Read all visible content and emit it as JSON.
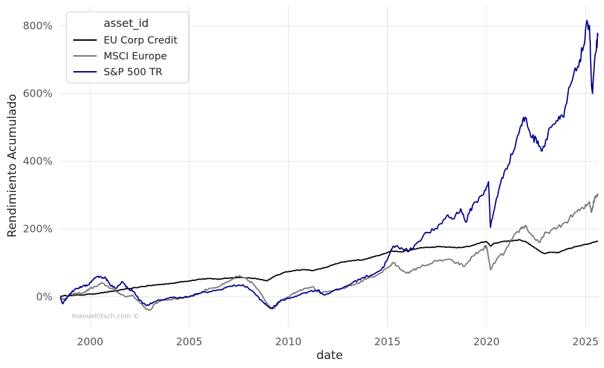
{
  "chart_data": {
    "type": "line",
    "xlabel": "date",
    "ylabel": "Rendimiento Acumulado",
    "xlim": [
      1998.45,
      2025.65
    ],
    "ylim": [
      -90,
      860
    ],
    "x_ticks": [
      {
        "value": 2000,
        "label": "2000"
      },
      {
        "value": 2005,
        "label": "2005"
      },
      {
        "value": 2010,
        "label": "2010"
      },
      {
        "value": 2015,
        "label": "2015"
      },
      {
        "value": 2020,
        "label": "2020"
      },
      {
        "value": 2025,
        "label": "2025"
      }
    ],
    "y_ticks": [
      {
        "value": 0,
        "label": "0%"
      },
      {
        "value": 200,
        "label": "200%"
      },
      {
        "value": 400,
        "label": "400%"
      },
      {
        "value": 600,
        "label": "600%"
      },
      {
        "value": 800,
        "label": "800%"
      }
    ],
    "grid": true,
    "legend": {
      "title": "asset_id",
      "position": "top-left"
    },
    "watermark": "manuelritsch.com ©",
    "series": [
      {
        "name": "EU Corp Credit",
        "color": "#000000",
        "points": [
          [
            1998.5,
            2
          ],
          [
            1999.0,
            4
          ],
          [
            1999.5,
            5
          ],
          [
            2000.0,
            8
          ],
          [
            2000.5,
            11
          ],
          [
            2001.0,
            15
          ],
          [
            2001.5,
            20
          ],
          [
            2002.0,
            24
          ],
          [
            2002.5,
            29
          ],
          [
            2003.0,
            33
          ],
          [
            2003.5,
            36
          ],
          [
            2004.0,
            39
          ],
          [
            2004.5,
            43
          ],
          [
            2005.0,
            47
          ],
          [
            2005.5,
            52
          ],
          [
            2006.0,
            54
          ],
          [
            2006.5,
            52
          ],
          [
            2007.0,
            55
          ],
          [
            2007.5,
            57
          ],
          [
            2008.0,
            56
          ],
          [
            2008.5,
            53
          ],
          [
            2008.9,
            47
          ],
          [
            2009.3,
            60
          ],
          [
            2009.8,
            72
          ],
          [
            2010.3,
            78
          ],
          [
            2010.8,
            80
          ],
          [
            2011.3,
            78
          ],
          [
            2011.8,
            85
          ],
          [
            2012.3,
            95
          ],
          [
            2012.8,
            103
          ],
          [
            2013.3,
            107
          ],
          [
            2013.8,
            110
          ],
          [
            2014.3,
            118
          ],
          [
            2014.8,
            127
          ],
          [
            2015.2,
            135
          ],
          [
            2015.7,
            133
          ],
          [
            2016.2,
            138
          ],
          [
            2016.7,
            145
          ],
          [
            2017.2,
            146
          ],
          [
            2017.7,
            148
          ],
          [
            2018.2,
            146
          ],
          [
            2018.7,
            145
          ],
          [
            2019.2,
            150
          ],
          [
            2019.7,
            160
          ],
          [
            2020.0,
            163
          ],
          [
            2020.2,
            150
          ],
          [
            2020.4,
            158
          ],
          [
            2020.8,
            163
          ],
          [
            2021.2,
            165
          ],
          [
            2021.7,
            168
          ],
          [
            2022.0,
            162
          ],
          [
            2022.3,
            150
          ],
          [
            2022.6,
            138
          ],
          [
            2022.9,
            128
          ],
          [
            2023.2,
            132
          ],
          [
            2023.6,
            130
          ],
          [
            2024.0,
            140
          ],
          [
            2024.5,
            148
          ],
          [
            2025.0,
            155
          ],
          [
            2025.5,
            162
          ],
          [
            2025.62,
            165
          ]
        ]
      },
      {
        "name": "MSCI Europe",
        "color": "#767676",
        "points": [
          [
            1998.5,
            0
          ],
          [
            1998.7,
            -10
          ],
          [
            1998.9,
            5
          ],
          [
            1999.3,
            10
          ],
          [
            1999.7,
            12
          ],
          [
            2000.0,
            25
          ],
          [
            2000.3,
            30
          ],
          [
            2000.6,
            40
          ],
          [
            2000.9,
            30
          ],
          [
            2001.2,
            20
          ],
          [
            2001.5,
            10
          ],
          [
            2001.8,
            0
          ],
          [
            2002.1,
            5
          ],
          [
            2002.4,
            -10
          ],
          [
            2002.7,
            -30
          ],
          [
            2003.0,
            -40
          ],
          [
            2003.3,
            -20
          ],
          [
            2003.6,
            -10
          ],
          [
            2004.0,
            -8
          ],
          [
            2004.5,
            -5
          ],
          [
            2005.0,
            0
          ],
          [
            2005.5,
            10
          ],
          [
            2006.0,
            25
          ],
          [
            2006.5,
            30
          ],
          [
            2007.0,
            45
          ],
          [
            2007.4,
            60
          ],
          [
            2007.8,
            55
          ],
          [
            2008.2,
            40
          ],
          [
            2008.6,
            10
          ],
          [
            2009.0,
            -25
          ],
          [
            2009.3,
            -35
          ],
          [
            2009.6,
            -10
          ],
          [
            2010.0,
            0
          ],
          [
            2010.4,
            15
          ],
          [
            2010.8,
            25
          ],
          [
            2011.2,
            30
          ],
          [
            2011.6,
            10
          ],
          [
            2012.0,
            15
          ],
          [
            2012.5,
            20
          ],
          [
            2013.0,
            30
          ],
          [
            2013.5,
            40
          ],
          [
            2014.0,
            55
          ],
          [
            2014.5,
            65
          ],
          [
            2015.0,
            85
          ],
          [
            2015.3,
            100
          ],
          [
            2015.7,
            80
          ],
          [
            2016.1,
            70
          ],
          [
            2016.5,
            85
          ],
          [
            2017.0,
            95
          ],
          [
            2017.5,
            105
          ],
          [
            2018.0,
            110
          ],
          [
            2018.5,
            100
          ],
          [
            2018.9,
            90
          ],
          [
            2019.3,
            120
          ],
          [
            2019.8,
            140
          ],
          [
            2020.0,
            150
          ],
          [
            2020.2,
            80
          ],
          [
            2020.5,
            110
          ],
          [
            2020.9,
            130
          ],
          [
            2021.3,
            170
          ],
          [
            2021.7,
            200
          ],
          [
            2021.95,
            210
          ],
          [
            2022.3,
            180
          ],
          [
            2022.7,
            160
          ],
          [
            2023.0,
            190
          ],
          [
            2023.5,
            200
          ],
          [
            2024.0,
            220
          ],
          [
            2024.5,
            250
          ],
          [
            2024.9,
            260
          ],
          [
            2025.2,
            280
          ],
          [
            2025.3,
            250
          ],
          [
            2025.45,
            290
          ],
          [
            2025.62,
            305
          ]
        ]
      },
      {
        "name": "S&P 500 TR",
        "color": "#00008b",
        "points": [
          [
            1998.5,
            0
          ],
          [
            1998.6,
            -20
          ],
          [
            1998.8,
            -5
          ],
          [
            1999.0,
            10
          ],
          [
            1999.3,
            25
          ],
          [
            1999.6,
            30
          ],
          [
            1999.9,
            35
          ],
          [
            2000.2,
            55
          ],
          [
            2000.5,
            60
          ],
          [
            2000.8,
            55
          ],
          [
            2001.0,
            35
          ],
          [
            2001.3,
            25
          ],
          [
            2001.6,
            45
          ],
          [
            2001.9,
            25
          ],
          [
            2002.2,
            15
          ],
          [
            2002.5,
            -10
          ],
          [
            2002.8,
            -25
          ],
          [
            2003.1,
            -20
          ],
          [
            2003.5,
            -10
          ],
          [
            2004.0,
            -3
          ],
          [
            2004.5,
            -2
          ],
          [
            2005.0,
            0
          ],
          [
            2005.5,
            10
          ],
          [
            2006.0,
            15
          ],
          [
            2006.5,
            20
          ],
          [
            2007.0,
            30
          ],
          [
            2007.5,
            35
          ],
          [
            2007.9,
            30
          ],
          [
            2008.3,
            10
          ],
          [
            2008.7,
            -15
          ],
          [
            2009.0,
            -30
          ],
          [
            2009.2,
            -35
          ],
          [
            2009.5,
            -15
          ],
          [
            2010.0,
            -5
          ],
          [
            2010.5,
            5
          ],
          [
            2011.0,
            15
          ],
          [
            2011.5,
            20
          ],
          [
            2011.8,
            5
          ],
          [
            2012.2,
            15
          ],
          [
            2012.7,
            25
          ],
          [
            2013.2,
            40
          ],
          [
            2013.7,
            55
          ],
          [
            2014.2,
            65
          ],
          [
            2014.7,
            80
          ],
          [
            2015.0,
            110
          ],
          [
            2015.3,
            150
          ],
          [
            2015.7,
            145
          ],
          [
            2016.1,
            135
          ],
          [
            2016.5,
            160
          ],
          [
            2017.0,
            190
          ],
          [
            2017.5,
            200
          ],
          [
            2018.0,
            240
          ],
          [
            2018.3,
            230
          ],
          [
            2018.7,
            260
          ],
          [
            2018.95,
            220
          ],
          [
            2019.3,
            270
          ],
          [
            2019.8,
            300
          ],
          [
            2020.1,
            340
          ],
          [
            2020.2,
            205
          ],
          [
            2020.5,
            290
          ],
          [
            2020.9,
            370
          ],
          [
            2021.3,
            420
          ],
          [
            2021.7,
            500
          ],
          [
            2021.95,
            530
          ],
          [
            2022.3,
            470
          ],
          [
            2022.6,
            460
          ],
          [
            2022.8,
            430
          ],
          [
            2023.2,
            500
          ],
          [
            2023.6,
            520
          ],
          [
            2023.9,
            530
          ],
          [
            2024.2,
            620
          ],
          [
            2024.6,
            680
          ],
          [
            2024.9,
            740
          ],
          [
            2025.1,
            810
          ],
          [
            2025.2,
            800
          ],
          [
            2025.3,
            620
          ],
          [
            2025.35,
            600
          ],
          [
            2025.5,
            720
          ],
          [
            2025.62,
            770
          ]
        ]
      }
    ]
  }
}
